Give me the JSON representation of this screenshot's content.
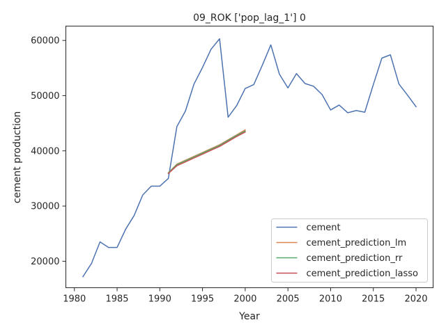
{
  "chart_data": {
    "type": "line",
    "title": "09_ROK ['pop_lag_1'] 0",
    "xlabel": "Year",
    "ylabel": "cement production",
    "xlim": [
      1979,
      2022
    ],
    "ylim": [
      15200,
      62600
    ],
    "xticks": [
      1980,
      1985,
      1990,
      1995,
      2000,
      2005,
      2010,
      2015,
      2020
    ],
    "yticks": [
      20000,
      30000,
      40000,
      50000,
      60000
    ],
    "grid": false,
    "legend_position": "lower-right",
    "series": [
      {
        "name": "cement",
        "color": "#4c72b0",
        "x": [
          1981,
          1982,
          1983,
          1984,
          1985,
          1986,
          1987,
          1988,
          1989,
          1990,
          1991,
          1992,
          1993,
          1994,
          1995,
          1996,
          1997,
          1998,
          1999,
          2000,
          2001,
          2002,
          2003,
          2004,
          2005,
          2006,
          2007,
          2008,
          2009,
          2010,
          2011,
          2012,
          2013,
          2014,
          2015,
          2016,
          2017,
          2018,
          2019,
          2020
        ],
        "y": [
          17200,
          19600,
          23500,
          22500,
          22500,
          25800,
          28300,
          32000,
          33600,
          33600,
          35000,
          44400,
          47200,
          52100,
          55100,
          58400,
          60300,
          46100,
          48200,
          51300,
          52000,
          55500,
          59200,
          53900,
          51400,
          54000,
          52200,
          51700,
          50200,
          47400,
          48300,
          46900,
          47300,
          47000,
          52000,
          56800,
          57400,
          52100,
          50100,
          48000
        ]
      },
      {
        "name": "cement_prediction_lm",
        "color": "#dd8452",
        "x": [
          1991,
          1992,
          1993,
          1994,
          1995,
          1996,
          1997,
          1998,
          1999,
          2000
        ],
        "y": [
          36000,
          37600,
          38300,
          39000,
          39700,
          40400,
          41100,
          42000,
          42900,
          43800
        ]
      },
      {
        "name": "cement_prediction_rr",
        "color": "#55a868",
        "x": [
          1991,
          1992,
          1993,
          1994,
          1995,
          1996,
          1997,
          1998,
          1999,
          2000
        ],
        "y": [
          36000,
          37500,
          38200,
          38900,
          39600,
          40300,
          41000,
          41900,
          42800,
          43600
        ]
      },
      {
        "name": "cement_prediction_lasso",
        "color": "#c44e52",
        "x": [
          1991,
          1992,
          1993,
          1994,
          1995,
          1996,
          1997,
          1998,
          1999,
          2000
        ],
        "y": [
          35900,
          37300,
          38000,
          38700,
          39400,
          40100,
          40800,
          41700,
          42600,
          43400
        ]
      }
    ]
  }
}
